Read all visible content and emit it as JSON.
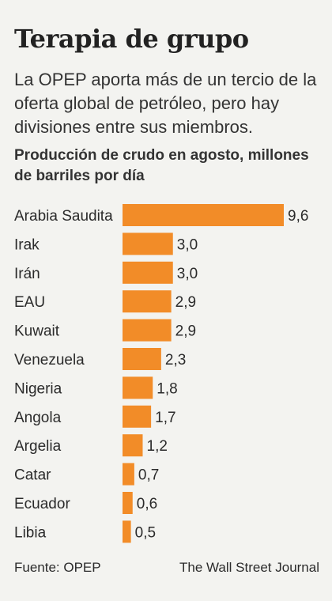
{
  "header": {
    "title": "Terapia de grupo",
    "subtitle": "La OPEP aporta más de un tercio de la oferta global de petróleo, pero hay divisiones entre sus miembros."
  },
  "footer": {
    "source": "Fuente: OPEP",
    "credit": "The Wall Street Journal"
  },
  "colors": {
    "bar": "#f28c28"
  },
  "chart_data": {
    "type": "bar",
    "orientation": "horizontal",
    "title": "Producción de crudo en agosto, millones de barriles por día",
    "categories": [
      "Arabia Saudita",
      "Irak",
      "Irán",
      "EAU",
      "Kuwait",
      "Venezuela",
      "Nigeria",
      "Angola",
      "Argelia",
      "Catar",
      "Ecuador",
      "Libia"
    ],
    "values": [
      9.6,
      3.0,
      3.0,
      2.9,
      2.9,
      2.3,
      1.8,
      1.7,
      1.2,
      0.7,
      0.6,
      0.5
    ],
    "value_labels": [
      "9,6",
      "3,0",
      "3,0",
      "2,9",
      "2,9",
      "2,3",
      "1,8",
      "1,7",
      "1,2",
      "0,7",
      "0,6",
      "0,5"
    ],
    "xlim": [
      0,
      9.6
    ],
    "grid": false,
    "legend": "none"
  }
}
